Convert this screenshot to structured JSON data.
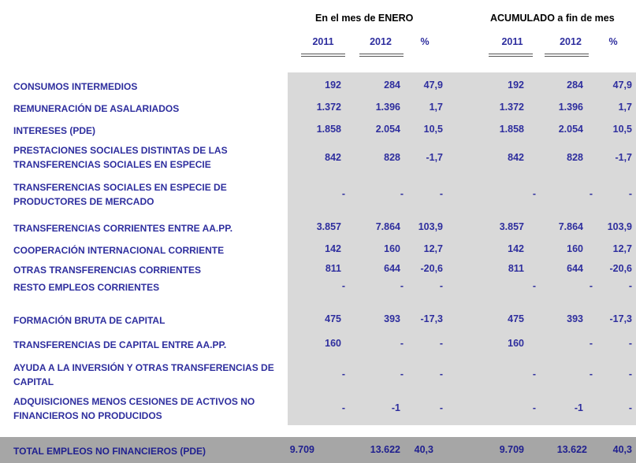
{
  "header": {
    "month_title": "En el mes de ENERO",
    "cumulative_title": "ACUMULADO a fin de mes",
    "columns": [
      "2011",
      "2012",
      "%",
      "2011",
      "2012",
      "%"
    ]
  },
  "rows": [
    {
      "label": "CONSUMOS INTERMEDIOS",
      "values": [
        "192",
        "284",
        "47,9",
        "192",
        "284",
        "47,9"
      ]
    },
    {
      "label": "REMUNERACIÓN DE ASALARIADOS",
      "values": [
        "1.372",
        "1.396",
        "1,7",
        "1.372",
        "1.396",
        "1,7"
      ]
    },
    {
      "label": "INTERESES (PDE)",
      "values": [
        "1.858",
        "2.054",
        "10,5",
        "1.858",
        "2.054",
        "10,5"
      ]
    },
    {
      "label": "PRESTACIONES SOCIALES DISTINTAS DE LAS TRANSFERENCIAS SOCIALES EN ESPECIE",
      "values": [
        "842",
        "828",
        "-1,7",
        "842",
        "828",
        "-1,7"
      ]
    },
    {
      "label": "TRANSFERENCIAS SOCIALES EN ESPECIE DE PRODUCTORES DE MERCADO",
      "values": [
        "-",
        "-",
        "-",
        "-",
        "-",
        "-"
      ]
    },
    {
      "label": "TRANSFERENCIAS CORRIENTES ENTRE AA.PP.",
      "values": [
        "3.857",
        "7.864",
        "103,9",
        "3.857",
        "7.864",
        "103,9"
      ]
    },
    {
      "label": "COOPERACIÓN INTERNACIONAL CORRIENTE",
      "values": [
        "142",
        "160",
        "12,7",
        "142",
        "160",
        "12,7"
      ]
    },
    {
      "label": "OTRAS TRANSFERENCIAS CORRIENTES",
      "values": [
        "811",
        "644",
        "-20,6",
        "811",
        "644",
        "-20,6"
      ]
    },
    {
      "label": "RESTO EMPLEOS CORRIENTES",
      "values": [
        "-",
        "-",
        "-",
        "-",
        "-",
        "-"
      ]
    },
    {
      "label": "FORMACIÓN BRUTA DE CAPITAL",
      "values": [
        "475",
        "393",
        "-17,3",
        "475",
        "393",
        "-17,3"
      ]
    },
    {
      "label": "TRANSFERENCIAS DE CAPITAL ENTRE AA.PP.",
      "values": [
        "160",
        "-",
        "-",
        "160",
        "-",
        "-"
      ]
    },
    {
      "label": "AYUDA A LA INVERSIÓN Y OTRAS TRANSFERENCIAS DE CAPITAL",
      "values": [
        "-",
        "-",
        "-",
        "-",
        "-",
        "-"
      ]
    },
    {
      "label": "ADQUISICIONES MENOS CESIONES DE ACTIVOS NO FINANCIEROS NO PRODUCIDOS",
      "values": [
        "-",
        "-1",
        "-",
        "-",
        "-1",
        "-"
      ]
    }
  ],
  "total": {
    "label": "TOTAL EMPLEOS NO FINANCIEROS (PDE)",
    "values": [
      "9.709",
      "13.622",
      "40,3",
      "9.709",
      "13.622",
      "40,3"
    ]
  }
}
